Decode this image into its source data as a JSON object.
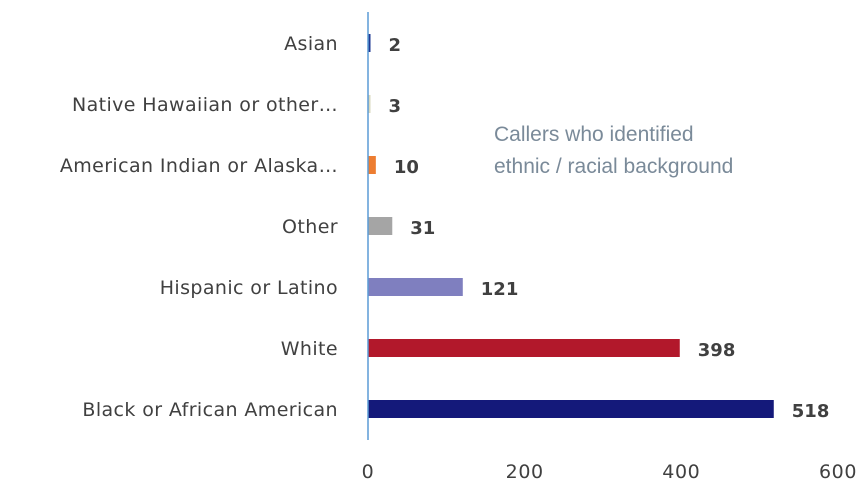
{
  "chart_data": {
    "type": "bar",
    "orientation": "horizontal",
    "categories": [
      "Asian",
      "Native Hawaiian or other…",
      "American Indian or Alaska…",
      "Other",
      "Hispanic or Latino",
      "White",
      "Black or African American"
    ],
    "values": [
      2,
      3,
      10,
      31,
      121,
      398,
      518
    ],
    "value_labels": [
      "2",
      "3",
      "10",
      "31",
      "121",
      "398",
      "518"
    ],
    "bar_colors": [
      "#1f3a93",
      "#d9d9bf",
      "#ed7d31",
      "#a5a5a5",
      "#7f7fbf",
      "#b2182b",
      "#14197a"
    ],
    "xlim": [
      0,
      600
    ],
    "xticks": [
      "0",
      "200",
      "400",
      "600"
    ],
    "title": "",
    "xlabel": "",
    "ylabel": "",
    "grid": false,
    "annotation": {
      "lines": [
        "Callers who identified",
        "ethnic / racial background"
      ]
    },
    "axis_color": "#5b9bd5"
  }
}
